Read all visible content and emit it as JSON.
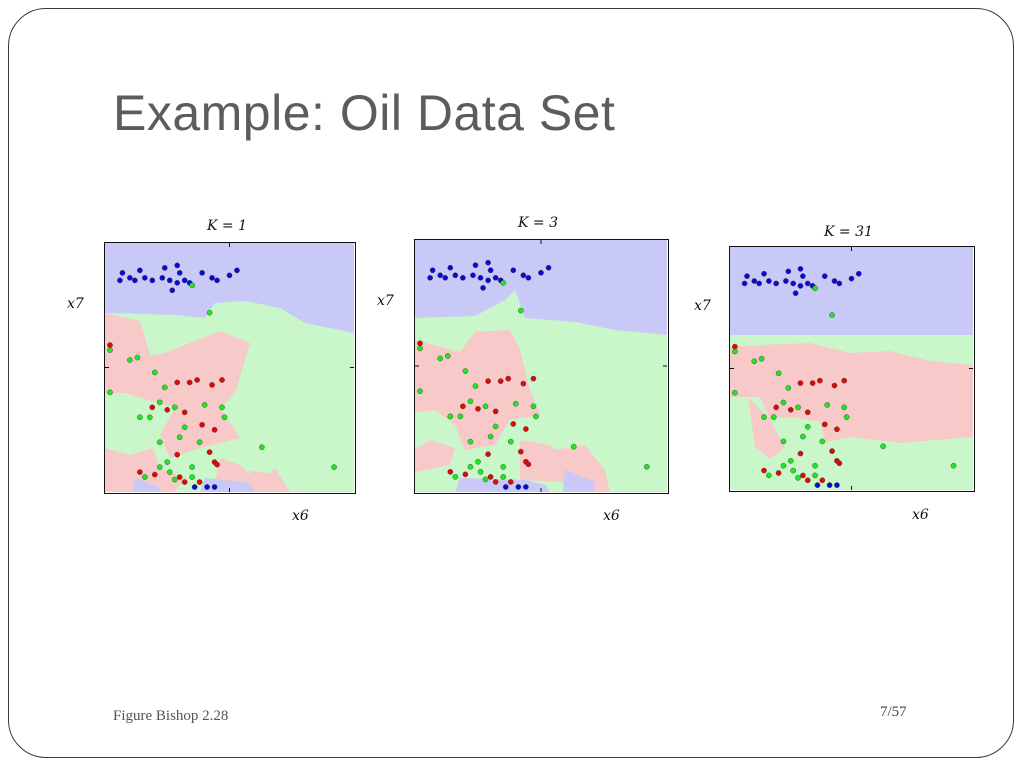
{
  "slide": {
    "title": "Example: Oil Data Set",
    "caption": "Figure Bishop 2.28",
    "page_number": "7/57"
  },
  "colors": {
    "class_blue": "#0a0ad6",
    "class_green": "#1ee81e",
    "class_red": "#e00808",
    "region_blue": "#c9c9f7",
    "region_green": "#c9f7c9",
    "region_red": "#f7c9c9"
  },
  "chart_data": [
    {
      "type": "scatter",
      "title": "K = 1",
      "xlabel": "x6",
      "ylabel": "x7",
      "xlim": [
        0,
        1
      ],
      "ylim": [
        0,
        1
      ],
      "grid": false,
      "series": [
        {
          "color": "#0a0ad6",
          "points": [
            [
              0.1,
              0.86
            ],
            [
              0.07,
              0.88
            ],
            [
              0.06,
              0.85
            ],
            [
              0.14,
              0.89
            ],
            [
              0.12,
              0.85
            ],
            [
              0.16,
              0.86
            ],
            [
              0.19,
              0.85
            ],
            [
              0.24,
              0.9
            ],
            [
              0.23,
              0.86
            ],
            [
              0.26,
              0.85
            ],
            [
              0.29,
              0.91
            ],
            [
              0.3,
              0.88
            ],
            [
              0.29,
              0.84
            ],
            [
              0.27,
              0.81
            ],
            [
              0.32,
              0.85
            ],
            [
              0.34,
              0.84
            ],
            [
              0.39,
              0.88
            ],
            [
              0.43,
              0.86
            ],
            [
              0.45,
              0.85
            ],
            [
              0.5,
              0.87
            ],
            [
              0.53,
              0.89
            ],
            [
              0.44,
              0.02
            ],
            [
              0.36,
              0.02
            ],
            [
              0.41,
              0.02
            ]
          ]
        },
        {
          "color": "#1ee81e",
          "points": [
            [
              0.35,
              0.83
            ],
            [
              0.42,
              0.72
            ],
            [
              0.02,
              0.57
            ],
            [
              0.1,
              0.53
            ],
            [
              0.13,
              0.54
            ],
            [
              0.2,
              0.48
            ],
            [
              0.02,
              0.4
            ],
            [
              0.24,
              0.42
            ],
            [
              0.22,
              0.36
            ],
            [
              0.18,
              0.3
            ],
            [
              0.14,
              0.3
            ],
            [
              0.28,
              0.34
            ],
            [
              0.4,
              0.35
            ],
            [
              0.47,
              0.34
            ],
            [
              0.48,
              0.3
            ],
            [
              0.32,
              0.26
            ],
            [
              0.22,
              0.2
            ],
            [
              0.3,
              0.22
            ],
            [
              0.38,
              0.2
            ],
            [
              0.25,
              0.12
            ],
            [
              0.22,
              0.1
            ],
            [
              0.26,
              0.08
            ],
            [
              0.28,
              0.05
            ],
            [
              0.35,
              0.06
            ],
            [
              0.16,
              0.06
            ],
            [
              0.35,
              0.1
            ],
            [
              0.63,
              0.18
            ],
            [
              0.92,
              0.1
            ]
          ]
        },
        {
          "color": "#e00808",
          "points": [
            [
              0.02,
              0.59
            ],
            [
              0.37,
              0.45
            ],
            [
              0.29,
              0.44
            ],
            [
              0.34,
              0.44
            ],
            [
              0.47,
              0.45
            ],
            [
              0.43,
              0.43
            ],
            [
              0.19,
              0.34
            ],
            [
              0.32,
              0.32
            ],
            [
              0.25,
              0.33
            ],
            [
              0.39,
              0.27
            ],
            [
              0.44,
              0.25
            ],
            [
              0.42,
              0.16
            ],
            [
              0.44,
              0.12
            ],
            [
              0.45,
              0.11
            ],
            [
              0.29,
              0.15
            ],
            [
              0.14,
              0.08
            ],
            [
              0.2,
              0.07
            ],
            [
              0.3,
              0.06
            ],
            [
              0.32,
              0.04
            ],
            [
              0.38,
              0.04
            ]
          ]
        }
      ]
    },
    {
      "type": "scatter",
      "title": "K = 3",
      "xlabel": "x6",
      "ylabel": "x7",
      "xlim": [
        0,
        1
      ],
      "ylim": [
        0,
        1
      ],
      "grid": false,
      "series": [
        {
          "color": "#0a0ad6",
          "points": [
            [
              0.1,
              0.86
            ],
            [
              0.07,
              0.88
            ],
            [
              0.06,
              0.85
            ],
            [
              0.14,
              0.89
            ],
            [
              0.12,
              0.85
            ],
            [
              0.16,
              0.86
            ],
            [
              0.19,
              0.85
            ],
            [
              0.24,
              0.9
            ],
            [
              0.23,
              0.86
            ],
            [
              0.26,
              0.85
            ],
            [
              0.29,
              0.91
            ],
            [
              0.3,
              0.88
            ],
            [
              0.29,
              0.84
            ],
            [
              0.27,
              0.81
            ],
            [
              0.32,
              0.85
            ],
            [
              0.34,
              0.84
            ],
            [
              0.39,
              0.88
            ],
            [
              0.43,
              0.86
            ],
            [
              0.45,
              0.85
            ],
            [
              0.5,
              0.87
            ],
            [
              0.53,
              0.89
            ],
            [
              0.44,
              0.02
            ],
            [
              0.36,
              0.02
            ],
            [
              0.41,
              0.02
            ]
          ]
        },
        {
          "color": "#1ee81e",
          "points": [
            [
              0.35,
              0.83
            ],
            [
              0.42,
              0.72
            ],
            [
              0.02,
              0.57
            ],
            [
              0.1,
              0.53
            ],
            [
              0.13,
              0.54
            ],
            [
              0.2,
              0.48
            ],
            [
              0.02,
              0.4
            ],
            [
              0.24,
              0.42
            ],
            [
              0.22,
              0.36
            ],
            [
              0.18,
              0.3
            ],
            [
              0.14,
              0.3
            ],
            [
              0.28,
              0.34
            ],
            [
              0.4,
              0.35
            ],
            [
              0.47,
              0.34
            ],
            [
              0.48,
              0.3
            ],
            [
              0.32,
              0.26
            ],
            [
              0.22,
              0.2
            ],
            [
              0.3,
              0.22
            ],
            [
              0.38,
              0.2
            ],
            [
              0.25,
              0.12
            ],
            [
              0.22,
              0.1
            ],
            [
              0.26,
              0.08
            ],
            [
              0.28,
              0.05
            ],
            [
              0.35,
              0.06
            ],
            [
              0.16,
              0.06
            ],
            [
              0.35,
              0.1
            ],
            [
              0.63,
              0.18
            ],
            [
              0.92,
              0.1
            ]
          ]
        },
        {
          "color": "#e00808",
          "points": [
            [
              0.02,
              0.59
            ],
            [
              0.37,
              0.45
            ],
            [
              0.29,
              0.44
            ],
            [
              0.34,
              0.44
            ],
            [
              0.47,
              0.45
            ],
            [
              0.43,
              0.43
            ],
            [
              0.19,
              0.34
            ],
            [
              0.32,
              0.32
            ],
            [
              0.25,
              0.33
            ],
            [
              0.39,
              0.27
            ],
            [
              0.44,
              0.25
            ],
            [
              0.42,
              0.16
            ],
            [
              0.44,
              0.12
            ],
            [
              0.45,
              0.11
            ],
            [
              0.29,
              0.15
            ],
            [
              0.14,
              0.08
            ],
            [
              0.2,
              0.07
            ],
            [
              0.3,
              0.06
            ],
            [
              0.32,
              0.04
            ],
            [
              0.38,
              0.04
            ]
          ]
        }
      ]
    },
    {
      "type": "scatter",
      "title": "K = 31",
      "xlabel": "x6",
      "ylabel": "x7",
      "xlim": [
        0,
        1
      ],
      "ylim": [
        0,
        1
      ],
      "grid": false,
      "series": [
        {
          "color": "#0a0ad6",
          "points": [
            [
              0.1,
              0.86
            ],
            [
              0.07,
              0.88
            ],
            [
              0.06,
              0.85
            ],
            [
              0.14,
              0.89
            ],
            [
              0.12,
              0.85
            ],
            [
              0.16,
              0.86
            ],
            [
              0.19,
              0.85
            ],
            [
              0.24,
              0.9
            ],
            [
              0.23,
              0.86
            ],
            [
              0.26,
              0.85
            ],
            [
              0.29,
              0.91
            ],
            [
              0.3,
              0.88
            ],
            [
              0.29,
              0.84
            ],
            [
              0.27,
              0.81
            ],
            [
              0.32,
              0.85
            ],
            [
              0.34,
              0.84
            ],
            [
              0.39,
              0.88
            ],
            [
              0.43,
              0.86
            ],
            [
              0.45,
              0.85
            ],
            [
              0.5,
              0.87
            ],
            [
              0.53,
              0.89
            ],
            [
              0.44,
              0.02
            ],
            [
              0.36,
              0.02
            ],
            [
              0.41,
              0.02
            ]
          ]
        },
        {
          "color": "#1ee81e",
          "points": [
            [
              0.35,
              0.83
            ],
            [
              0.42,
              0.72
            ],
            [
              0.02,
              0.57
            ],
            [
              0.1,
              0.53
            ],
            [
              0.13,
              0.54
            ],
            [
              0.2,
              0.48
            ],
            [
              0.02,
              0.4
            ],
            [
              0.24,
              0.42
            ],
            [
              0.22,
              0.36
            ],
            [
              0.18,
              0.3
            ],
            [
              0.14,
              0.3
            ],
            [
              0.28,
              0.34
            ],
            [
              0.4,
              0.35
            ],
            [
              0.47,
              0.34
            ],
            [
              0.48,
              0.3
            ],
            [
              0.32,
              0.26
            ],
            [
              0.22,
              0.2
            ],
            [
              0.3,
              0.22
            ],
            [
              0.38,
              0.2
            ],
            [
              0.25,
              0.12
            ],
            [
              0.22,
              0.1
            ],
            [
              0.26,
              0.08
            ],
            [
              0.28,
              0.05
            ],
            [
              0.35,
              0.06
            ],
            [
              0.16,
              0.06
            ],
            [
              0.35,
              0.1
            ],
            [
              0.63,
              0.18
            ],
            [
              0.92,
              0.1
            ]
          ]
        },
        {
          "color": "#e00808",
          "points": [
            [
              0.02,
              0.59
            ],
            [
              0.37,
              0.45
            ],
            [
              0.29,
              0.44
            ],
            [
              0.34,
              0.44
            ],
            [
              0.47,
              0.45
            ],
            [
              0.43,
              0.43
            ],
            [
              0.19,
              0.34
            ],
            [
              0.32,
              0.32
            ],
            [
              0.25,
              0.33
            ],
            [
              0.39,
              0.27
            ],
            [
              0.44,
              0.25
            ],
            [
              0.42,
              0.16
            ],
            [
              0.44,
              0.12
            ],
            [
              0.45,
              0.11
            ],
            [
              0.29,
              0.15
            ],
            [
              0.14,
              0.08
            ],
            [
              0.2,
              0.07
            ],
            [
              0.3,
              0.06
            ],
            [
              0.32,
              0.04
            ],
            [
              0.38,
              0.04
            ]
          ]
        }
      ]
    }
  ]
}
